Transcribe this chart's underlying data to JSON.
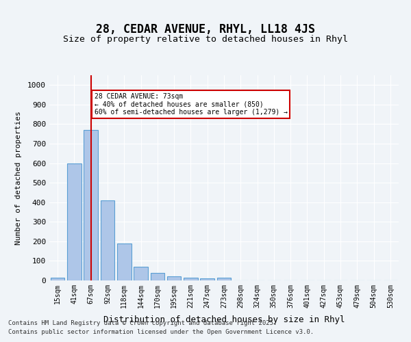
{
  "title_line1": "28, CEDAR AVENUE, RHYL, LL18 4JS",
  "title_line2": "Size of property relative to detached houses in Rhyl",
  "xlabel": "Distribution of detached houses by size in Rhyl",
  "ylabel": "Number of detached properties",
  "categories": [
    "15sqm",
    "41sqm",
    "67sqm",
    "92sqm",
    "118sqm",
    "144sqm",
    "170sqm",
    "195sqm",
    "221sqm",
    "247sqm",
    "273sqm",
    "298sqm",
    "324sqm",
    "350sqm",
    "376sqm",
    "401sqm",
    "427sqm",
    "453sqm",
    "479sqm",
    "504sqm",
    "530sqm"
  ],
  "values": [
    15,
    600,
    770,
    410,
    190,
    70,
    40,
    20,
    15,
    10,
    15,
    0,
    0,
    0,
    0,
    0,
    0,
    0,
    0,
    0,
    0
  ],
  "bar_color": "#aec6e8",
  "bar_edge_color": "#5a9fd4",
  "vline_x": 2,
  "vline_color": "#cc0000",
  "annotation_text": "28 CEDAR AVENUE: 73sqm\n← 40% of detached houses are smaller (850)\n60% of semi-detached houses are larger (1,279) →",
  "annotation_box_color": "#ffffff",
  "annotation_box_edge": "#cc0000",
  "ylim": [
    0,
    1050
  ],
  "yticks": [
    0,
    100,
    200,
    300,
    400,
    500,
    600,
    700,
    800,
    900,
    1000
  ],
  "background_color": "#f0f4f8",
  "footer_line1": "Contains HM Land Registry data © Crown copyright and database right 2025.",
  "footer_line2": "Contains public sector information licensed under the Open Government Licence v3.0."
}
